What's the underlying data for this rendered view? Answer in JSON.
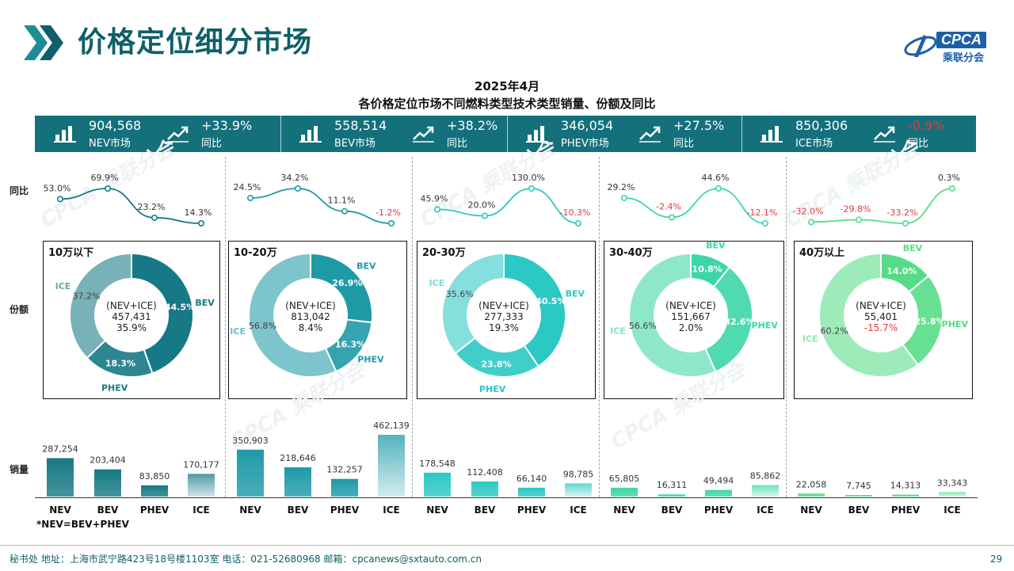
{
  "header": {
    "title": "价格定位细分市场",
    "logo_text": "CPCA",
    "logo_sub": "乘联分会",
    "watermark": "CPCA 乘联分会"
  },
  "chart_title_line1": "2025年4月",
  "chart_title_line2": "各价格定位市场不同燃料类型技术类型销量、份额及同比",
  "kpis": [
    {
      "value": "904,568",
      "label": "NEV市场",
      "growth": "+33.9%",
      "growth_label": "同比",
      "growth_color": "#ffffff"
    },
    {
      "value": "558,514",
      "label": "BEV市场",
      "growth": "+38.2%",
      "growth_label": "同比",
      "growth_color": "#ffffff"
    },
    {
      "value": "346,054",
      "label": "PHEV市场",
      "growth": "+27.5%",
      "growth_label": "同比",
      "growth_color": "#ffffff"
    },
    {
      "value": "850,306",
      "label": "ICE市场",
      "growth": "-0.9%",
      "growth_label": "同比",
      "growth_color": "#e03b3b"
    }
  ],
  "row_labels": {
    "yoy": "同比",
    "share": "份额",
    "volume": "销量"
  },
  "note": "*NEV=BEV+PHEV",
  "footer": {
    "text": "秘书处   地址：上海市武宁路423号18号楼1103室  电话：021-52680968   邮箱：cpcanews@sxtauto.com.cn",
    "page": "29"
  },
  "colors": {
    "bar_header": "#14707b",
    "negative": "#e03b3b",
    "segments": [
      "#167985",
      "#1e9aa7",
      "#2cc8c4",
      "#3dd6a6",
      "#56dc86"
    ]
  },
  "chart_data": [
    {
      "type": "line",
      "title": "同比",
      "categories": [
        "NEV",
        "BEV",
        "PHEV",
        "ICE"
      ],
      "series": [
        {
          "name": "10万以下",
          "values": [
            53.0,
            69.9,
            23.2,
            14.3
          ],
          "labels": [
            "53.0%",
            "69.9%",
            "23.2%",
            "14.3%"
          ]
        },
        {
          "name": "10-20万",
          "values": [
            24.5,
            34.2,
            11.1,
            -1.2
          ],
          "labels": [
            "24.5%",
            "34.2%",
            "11.1%",
            "-1.2%"
          ]
        },
        {
          "name": "20-30万",
          "values": [
            45.9,
            20.0,
            130.0,
            -10.3
          ],
          "labels": [
            "45.9%",
            "20.0%",
            "130.0%",
            "-10.3%"
          ]
        },
        {
          "name": "30-40万",
          "values": [
            29.2,
            -2.4,
            44.6,
            -12.1
          ],
          "labels": [
            "29.2%",
            "-2.4%",
            "44.6%",
            "-12.1%"
          ]
        },
        {
          "name": "40万以上",
          "values": [
            -32.0,
            -29.8,
            -33.2,
            0.3
          ],
          "labels": [
            "-32.0%",
            "-29.8%",
            "-33.2%",
            "0.3%"
          ]
        }
      ]
    },
    {
      "type": "pie",
      "title": "份额",
      "segments": [
        {
          "name": "10万以下",
          "slices": [
            {
              "label": "BEV",
              "value": 44.5,
              "text": "44.5%"
            },
            {
              "label": "PHEV",
              "value": 18.3,
              "text": "18.3%"
            },
            {
              "label": "ICE",
              "value": 37.2,
              "text": "37.2%"
            }
          ],
          "center_label": "(NEV+ICE)",
          "center_total": "457,431",
          "center_yoy": "35.9%"
        },
        {
          "name": "10-20万",
          "slices": [
            {
              "label": "BEV",
              "value": 26.9,
              "text": "26.9%"
            },
            {
              "label": "PHEV",
              "value": 16.3,
              "text": "16.3%"
            },
            {
              "label": "ICE",
              "value": 56.8,
              "text": "56.8%"
            }
          ],
          "center_label": "(NEV+ICE)",
          "center_total": "813,042",
          "center_yoy": "8.4%"
        },
        {
          "name": "20-30万",
          "slices": [
            {
              "label": "BEV",
              "value": 40.5,
              "text": "40.5%"
            },
            {
              "label": "PHEV",
              "value": 23.8,
              "text": "23.8%"
            },
            {
              "label": "ICE",
              "value": 35.6,
              "text": "35.6%"
            }
          ],
          "center_label": "(NEV+ICE)",
          "center_total": "277,333",
          "center_yoy": "19.3%"
        },
        {
          "name": "30-40万",
          "slices": [
            {
              "label": "BEV",
              "value": 10.8,
              "text": "10.8%"
            },
            {
              "label": "PHEV",
              "value": 32.6,
              "text": "32.6%"
            },
            {
              "label": "ICE",
              "value": 56.6,
              "text": "56.6%"
            }
          ],
          "center_label": "(NEV+ICE)",
          "center_total": "151,667",
          "center_yoy": "2.0%"
        },
        {
          "name": "40万以上",
          "slices": [
            {
              "label": "BEV",
              "value": 14.0,
              "text": "14.0%"
            },
            {
              "label": "PHEV",
              "value": 25.8,
              "text": "25.8%"
            },
            {
              "label": "ICE",
              "value": 60.2,
              "text": "60.2%"
            }
          ],
          "center_label": "(NEV+ICE)",
          "center_total": "55,401",
          "center_yoy": "-15.7%"
        }
      ]
    },
    {
      "type": "bar",
      "title": "销量",
      "categories": [
        "NEV",
        "BEV",
        "PHEV",
        "ICE"
      ],
      "ylim": [
        0,
        462139
      ],
      "series": [
        {
          "name": "10万以下",
          "values": [
            287254,
            203404,
            83850,
            170177
          ],
          "labels": [
            "287,254",
            "203,404",
            "83,850",
            "170,177"
          ]
        },
        {
          "name": "10-20万",
          "values": [
            350903,
            218646,
            132257,
            462139
          ],
          "labels": [
            "350,903",
            "218,646",
            "132,257",
            "462,139"
          ]
        },
        {
          "name": "20-30万",
          "values": [
            178548,
            112408,
            66140,
            98785
          ],
          "labels": [
            "178,548",
            "112,408",
            "66,140",
            "98,785"
          ]
        },
        {
          "name": "30-40万",
          "values": [
            65805,
            16311,
            49494,
            85862
          ],
          "labels": [
            "65,805",
            "16,311",
            "49,494",
            "85,862"
          ]
        },
        {
          "name": "40万以上",
          "values": [
            22058,
            7745,
            14313,
            33343
          ],
          "labels": [
            "22,058",
            "7,745",
            "14,313",
            "33,343"
          ]
        }
      ]
    }
  ]
}
